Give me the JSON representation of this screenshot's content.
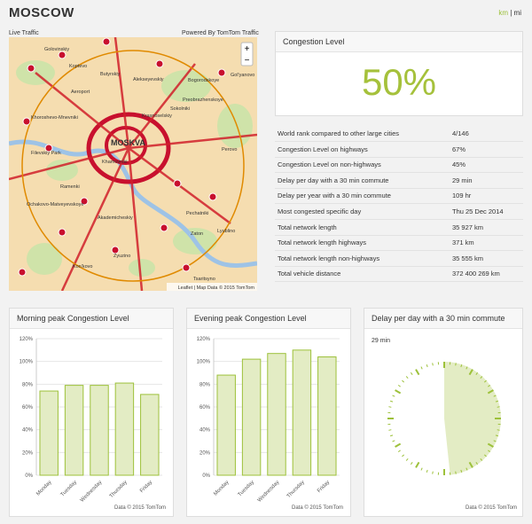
{
  "header": {
    "title": "MOSCOW",
    "unit_km": "km",
    "separator": "|",
    "unit_mi": "mi"
  },
  "map": {
    "title": "Live Traffic",
    "credit": "Powered By TomTom Traffic",
    "attribution": "Leaflet | Map Data © 2015 TomTom",
    "zoom_in": "+",
    "zoom_out": "−",
    "labels": [
      "Golovinskiy",
      "Koptevo",
      "Butyrskiy",
      "Alekseyevskiy",
      "Bogorodskoye",
      "Gol'yanovo",
      "Aeroport",
      "Preobrazhenskoye",
      "Khoroshevo-Mnevniki",
      "Krasnoselskiy",
      "Sokolniki",
      "MOSKVA",
      "Perovo",
      "Filevskiy Park",
      "Khamovniki",
      "Ramenki",
      "Ochakovo-Matveyevskoye",
      "Akademicheskiy",
      "Pechatniki",
      "Zaton",
      "Lyublino",
      "Zyuzino",
      "Kon'kovo",
      "Tsaritsyno"
    ]
  },
  "congestion": {
    "title": "Congestion Level",
    "value": "50%"
  },
  "table": {
    "rows": [
      [
        "World rank compared to other large cities",
        "4/146"
      ],
      [
        "Congestion Level on highways",
        "67%"
      ],
      [
        "Congestion Level on non-highways",
        "45%"
      ],
      [
        "Delay per day with a 30 min commute",
        "29 min"
      ],
      [
        "Delay per year with a 30 min commute",
        "109 hr"
      ],
      [
        "Most congested specific day",
        "Thu 25 Dec 2014"
      ],
      [
        "Total network length",
        "35 927 km"
      ],
      [
        "Total network length highways",
        "371 km"
      ],
      [
        "Total network length non-highways",
        "35 555 km"
      ],
      [
        "Total vehicle distance",
        "372 400 269 km"
      ]
    ]
  },
  "morning_chart": {
    "type": "bar",
    "title": "Morning peak Congestion Level",
    "categories": [
      "Monday",
      "Tuesday",
      "Wednesday",
      "Thursday",
      "Friday"
    ],
    "values": [
      74,
      79,
      79,
      81,
      71
    ],
    "ylim": [
      0,
      120
    ],
    "yticks": [
      {
        "value": 0,
        "label": "0%"
      },
      {
        "value": 20,
        "label": "20%"
      },
      {
        "value": 40,
        "label": "40%"
      },
      {
        "value": 60,
        "label": "60%"
      },
      {
        "value": 80,
        "label": "80%"
      },
      {
        "value": 100,
        "label": "100%"
      },
      {
        "value": 120,
        "label": "120%"
      }
    ],
    "color": "#9dc13a",
    "grid": true,
    "source": "Data © 2015 TomTom"
  },
  "evening_chart": {
    "type": "bar",
    "title": "Evening peak Congestion Level",
    "categories": [
      "Monday",
      "Tuesday",
      "Wednesday",
      "Thursday",
      "Friday"
    ],
    "values": [
      88,
      102,
      107,
      110,
      104
    ],
    "ylim": [
      0,
      120
    ],
    "yticks": [
      {
        "value": 0,
        "label": "0%"
      },
      {
        "value": 20,
        "label": "20%"
      },
      {
        "value": 40,
        "label": "40%"
      },
      {
        "value": 60,
        "label": "60%"
      },
      {
        "value": 80,
        "label": "80%"
      },
      {
        "value": 100,
        "label": "100%"
      },
      {
        "value": 120,
        "label": "120%"
      }
    ],
    "color": "#9dc13a",
    "grid": true,
    "source": "Data © 2015 TomTom"
  },
  "delay_chart": {
    "type": "clock",
    "title": "Delay per day with a 30 min commute",
    "value": 29,
    "value_label": "29 min",
    "ylim": [
      0,
      60
    ],
    "color": "#9dc13a",
    "source": "Data © 2015 TomTom"
  }
}
